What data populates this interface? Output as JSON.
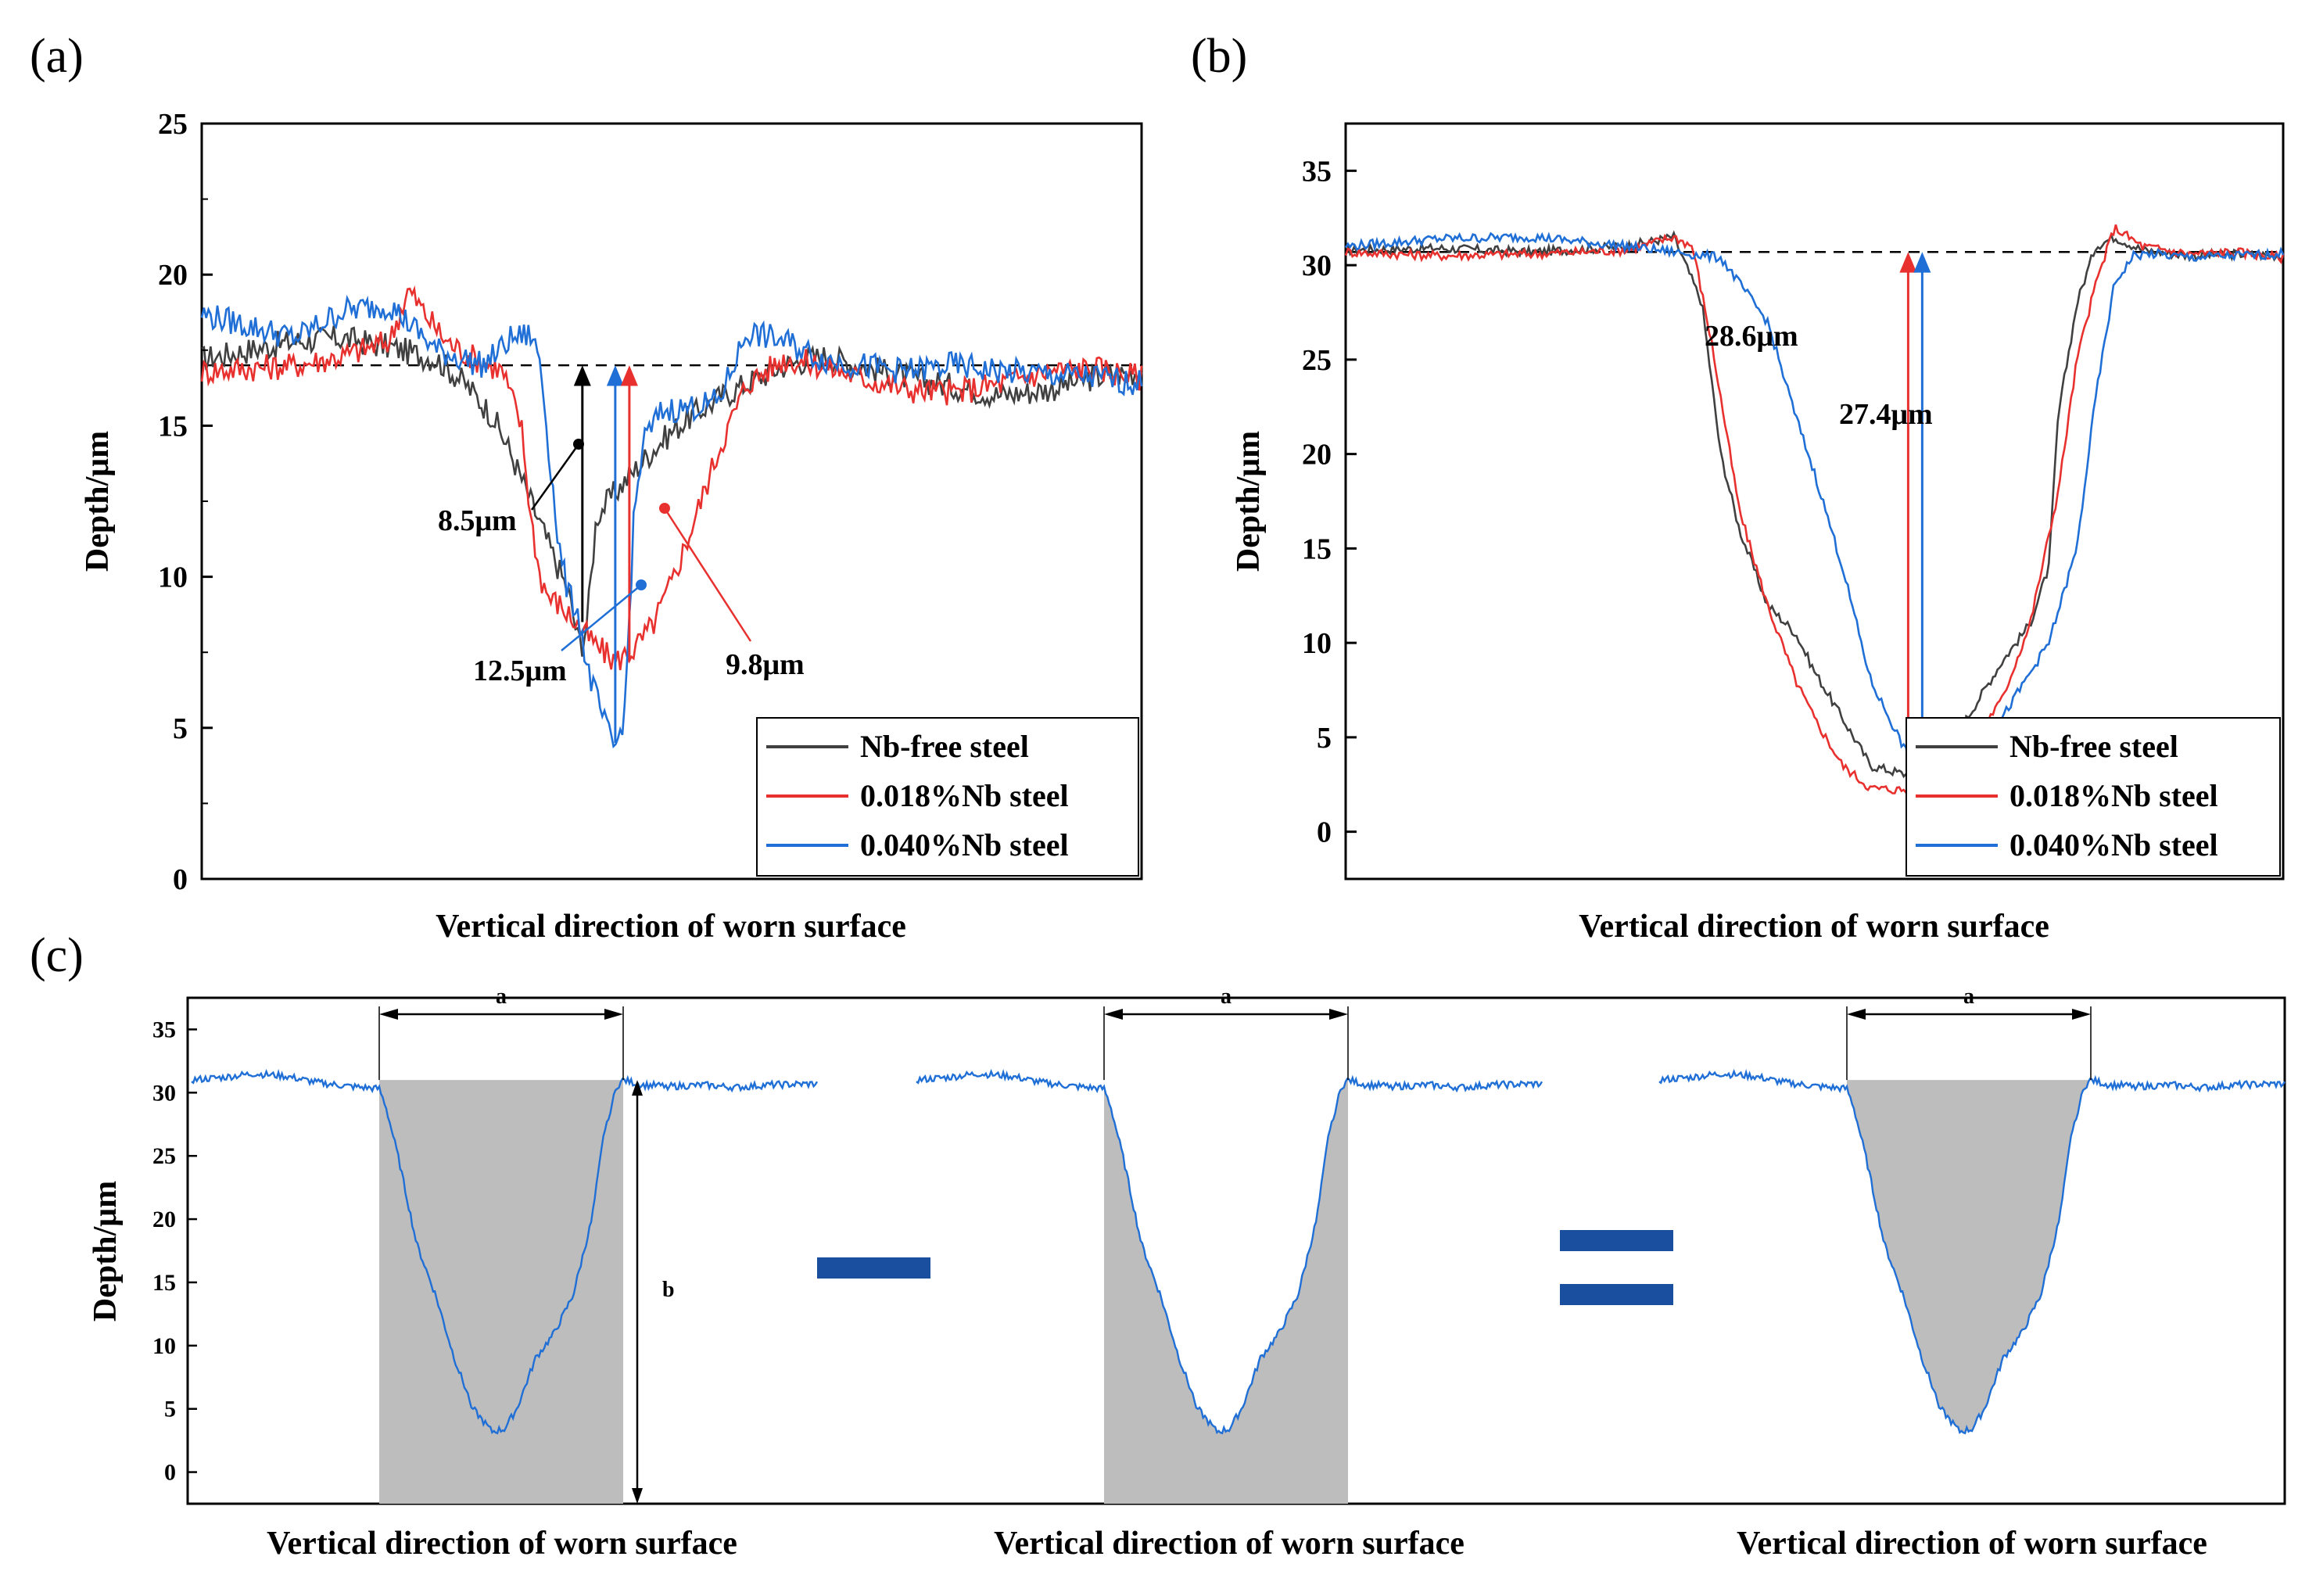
{
  "panel_labels": {
    "a": "(a)",
    "b": "(b)",
    "c": "(c)"
  },
  "colors": {
    "nb_free": "#404040",
    "nb_018": "#e8312e",
    "nb_040": "#1f6fd6",
    "fill_gray": "#bdbdbd",
    "operator": "#1a4fa0"
  },
  "chart_data": [
    {
      "type": "line",
      "panel": "(a)",
      "xlabel": "Vertical direction of worn surface",
      "ylabel": "Depth/μm",
      "ylim": [
        0,
        25
      ],
      "yticks": [
        "0",
        "5",
        "10",
        "15",
        "20",
        "25"
      ],
      "reference_line": {
        "y": 17,
        "style": "dashed"
      },
      "legend": {
        "placement": "bottom-right",
        "entries": [
          "Nb-free steel",
          "0.018%Nb steel",
          "0.040%Nb steel"
        ]
      },
      "x_range": [
        0,
        1
      ],
      "series": [
        {
          "name": "Nb-free steel",
          "color": "#404040",
          "x": [
            0.0,
            0.05,
            0.1,
            0.15,
            0.2,
            0.25,
            0.28,
            0.31,
            0.33,
            0.35,
            0.37,
            0.39,
            0.4,
            0.405,
            0.41,
            0.42,
            0.44,
            0.46,
            0.48,
            0.5,
            0.52,
            0.55,
            0.58,
            0.62,
            0.66,
            0.7,
            0.75,
            0.8,
            0.85,
            0.9,
            0.95,
            1.0
          ],
          "y": [
            17.2,
            17.5,
            17.8,
            17.9,
            17.6,
            17.2,
            16.4,
            15.3,
            14.0,
            12.5,
            11.0,
            9.5,
            8.0,
            7.8,
            8.5,
            12.0,
            12.8,
            13.5,
            14.2,
            14.8,
            15.3,
            15.9,
            16.4,
            17.0,
            17.3,
            17.0,
            16.6,
            16.3,
            16.0,
            16.2,
            16.6,
            16.8
          ]
        },
        {
          "name": "0.018%Nb steel",
          "color": "#e8312e",
          "x": [
            0.0,
            0.05,
            0.1,
            0.15,
            0.2,
            0.22,
            0.24,
            0.26,
            0.28,
            0.3,
            0.32,
            0.34,
            0.35,
            0.36,
            0.37,
            0.38,
            0.4,
            0.42,
            0.44,
            0.46,
            0.48,
            0.5,
            0.52,
            0.55,
            0.58,
            0.62,
            0.66,
            0.7,
            0.75,
            0.8,
            0.85,
            0.9,
            0.95,
            1.0
          ],
          "y": [
            16.8,
            16.9,
            17.0,
            17.3,
            17.8,
            19.5,
            18.6,
            17.8,
            17.4,
            17.1,
            16.8,
            15.0,
            12.0,
            10.0,
            9.3,
            9.1,
            8.4,
            7.7,
            7.2,
            7.6,
            8.4,
            9.8,
            11.5,
            14.2,
            16.4,
            17.2,
            17.0,
            16.6,
            16.2,
            16.1,
            16.4,
            16.8,
            16.9,
            16.6
          ]
        },
        {
          "name": "0.040%Nb steel",
          "color": "#1f6fd6",
          "x": [
            0.0,
            0.05,
            0.1,
            0.15,
            0.2,
            0.25,
            0.3,
            0.33,
            0.35,
            0.36,
            0.37,
            0.38,
            0.39,
            0.4,
            0.41,
            0.42,
            0.43,
            0.44,
            0.45,
            0.46,
            0.47,
            0.49,
            0.52,
            0.55,
            0.58,
            0.62,
            0.66,
            0.7,
            0.75,
            0.8,
            0.85,
            0.9,
            0.95,
            1.0
          ],
          "y": [
            18.7,
            18.3,
            17.9,
            18.8,
            19.0,
            17.5,
            17.0,
            17.9,
            18.0,
            17.2,
            14.0,
            11.0,
            9.4,
            8.9,
            7.0,
            6.0,
            5.0,
            4.3,
            5.5,
            12.0,
            14.5,
            15.5,
            15.6,
            15.8,
            18.1,
            17.8,
            17.2,
            17.0,
            16.8,
            17.0,
            16.8,
            16.7,
            16.6,
            16.4
          ]
        }
      ],
      "annotations": [
        {
          "text": "8.5μm",
          "color": "#000000",
          "x": 0.405,
          "y_top": 17.0,
          "y_bottom": 8.5
        },
        {
          "text": "12.5μm",
          "color": "#1f6fd6",
          "x": 0.44,
          "y_top": 17.0,
          "y_bottom": 4.5
        },
        {
          "text": "9.8μm",
          "color": "#e8312e",
          "x": 0.455,
          "y_top": 17.0,
          "y_bottom": 7.2
        }
      ]
    },
    {
      "type": "line",
      "panel": "(b)",
      "xlabel": "Vertical direction of worn surface",
      "ylabel": "Depth/μm",
      "ylim": [
        -2.5,
        37.5
      ],
      "yticks": [
        "0",
        "5",
        "10",
        "15",
        "20",
        "25",
        "30",
        "35"
      ],
      "reference_line": {
        "y": 30.7,
        "style": "dashed"
      },
      "legend": {
        "placement": "bottom-right",
        "entries": [
          "Nb-free steel",
          "0.018%Nb steel",
          "0.040%Nb steel"
        ]
      },
      "x_range": [
        0,
        1
      ],
      "series": [
        {
          "name": "Nb-free steel",
          "color": "#404040",
          "x": [
            0.0,
            0.1,
            0.2,
            0.3,
            0.35,
            0.38,
            0.4,
            0.42,
            0.45,
            0.48,
            0.5,
            0.53,
            0.56,
            0.6,
            0.65,
            0.7,
            0.73,
            0.75,
            0.76,
            0.78,
            0.8,
            0.82,
            0.85,
            0.9,
            0.95,
            1.0
          ],
          "y": [
            30.8,
            30.9,
            30.7,
            31.0,
            31.5,
            28.0,
            20.0,
            16.0,
            12.0,
            10.5,
            8.5,
            6.0,
            3.5,
            3.0,
            5.0,
            9.0,
            11.0,
            14.0,
            22.0,
            28.0,
            31.0,
            31.5,
            30.8,
            30.5,
            30.6,
            30.5
          ]
        },
        {
          "name": "0.018%Nb steel",
          "color": "#e8312e",
          "x": [
            0.0,
            0.1,
            0.2,
            0.3,
            0.35,
            0.37,
            0.39,
            0.42,
            0.45,
            0.48,
            0.5,
            0.53,
            0.56,
            0.6,
            0.65,
            0.7,
            0.73,
            0.76,
            0.78,
            0.8,
            0.82,
            0.85,
            0.9,
            0.95,
            1.0
          ],
          "y": [
            30.7,
            30.5,
            30.6,
            30.8,
            31.5,
            31.0,
            26.0,
            17.0,
            12.0,
            8.0,
            6.0,
            3.5,
            2.3,
            2.2,
            3.5,
            7.0,
            11.0,
            18.0,
            25.0,
            29.0,
            32.0,
            31.0,
            30.6,
            30.7,
            30.4
          ]
        },
        {
          "name": "0.040%Nb steel",
          "color": "#1f6fd6",
          "x": [
            0.0,
            0.05,
            0.1,
            0.2,
            0.3,
            0.35,
            0.4,
            0.45,
            0.48,
            0.5,
            0.53,
            0.56,
            0.6,
            0.65,
            0.7,
            0.75,
            0.78,
            0.8,
            0.82,
            0.84,
            0.86,
            0.9,
            0.95,
            1.0
          ],
          "y": [
            31.0,
            31.2,
            31.4,
            31.5,
            31.0,
            30.7,
            30.4,
            27.0,
            22.0,
            19.0,
            14.0,
            8.0,
            4.0,
            3.0,
            6.0,
            10.0,
            15.0,
            23.0,
            29.0,
            30.5,
            30.6,
            30.4,
            30.5,
            30.6
          ]
        }
      ],
      "annotations": [
        {
          "text": "28.6μm",
          "color": "#e8312e",
          "x": 0.6,
          "y_top": 30.7,
          "y_bottom": 2.1
        },
        {
          "text": "27.4μm",
          "color": "#1f6fd6",
          "x": 0.615,
          "y_top": 30.7,
          "y_bottom": 3.3
        }
      ]
    },
    {
      "type": "area",
      "panel": "(c)",
      "ylabel": "Depth/μm",
      "ylim": [
        -2.5,
        37.5
      ],
      "yticks": [
        "0",
        "5",
        "10",
        "15",
        "20",
        "25",
        "30",
        "35"
      ],
      "sub_xlabels": [
        "Vertical direction of worn surface",
        "Vertical direction of worn surface",
        "Vertical direction of worn surface"
      ],
      "width_label": "a",
      "height_label": "b",
      "operators": [
        "−",
        "="
      ],
      "profile": {
        "x": [
          0.0,
          0.05,
          0.1,
          0.15,
          0.2,
          0.25,
          0.3,
          0.31,
          0.33,
          0.36,
          0.39,
          0.42,
          0.45,
          0.48,
          0.5,
          0.52,
          0.55,
          0.58,
          0.61,
          0.64,
          0.66,
          0.68,
          0.69,
          0.72,
          0.77,
          0.82,
          0.87,
          0.92,
          1.0
        ],
        "y": [
          31.0,
          31.2,
          31.5,
          31.3,
          30.8,
          30.5,
          30.3,
          29.0,
          25.0,
          18.0,
          14.0,
          9.0,
          5.0,
          3.2,
          3.4,
          5.0,
          9.0,
          11.0,
          14.0,
          20.0,
          27.0,
          30.5,
          31.0,
          30.6,
          30.5,
          30.6,
          30.4,
          30.6,
          30.7
        ]
      },
      "trench_x": [
        0.3,
        0.69
      ],
      "surface_y": 31.0,
      "profile_color": "#1f6fd6"
    }
  ]
}
